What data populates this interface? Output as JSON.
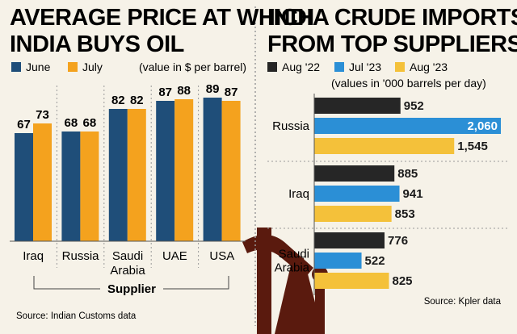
{
  "colors": {
    "june": "#1f4e79",
    "july": "#f4a21e",
    "aug22": "#262626",
    "jul23": "#2b8fd6",
    "aug23": "#f4c13a",
    "background": "#f6f2e8",
    "panel_rule": "#9a9a9a"
  },
  "chart_data": [
    {
      "type": "bar",
      "title": "AVERAGE PRICE AT WHICH INDIA BUYS OIL",
      "title_lines": [
        "AVERAGE PRICE AT WHICH",
        "INDIA BUYS OIL"
      ],
      "note": "(value in $ per barrel)",
      "xlabel": "Supplier",
      "categories": [
        "Iraq",
        "Russia",
        "Saudi Arabia",
        "UAE",
        "USA"
      ],
      "category_lines": [
        [
          "Iraq"
        ],
        [
          "Russia"
        ],
        [
          "Saudi",
          "Arabia"
        ],
        [
          "UAE"
        ],
        [
          "USA"
        ]
      ],
      "series": [
        {
          "name": "June",
          "values": [
            67,
            68,
            82,
            87,
            89
          ]
        },
        {
          "name": "July",
          "values": [
            73,
            68,
            82,
            88,
            87
          ]
        }
      ],
      "ylim": [
        0,
        89
      ],
      "grid": false,
      "legend_position": "top",
      "source": "Source: Indian Customs data"
    },
    {
      "type": "bar",
      "orientation": "horizontal",
      "title": "INDIA CRUDE IMPORTS FROM TOP SUPPLIERS",
      "title_lines": [
        "INDIA CRUDE IMPORTS",
        "FROM TOP SUPPLIERS"
      ],
      "note": "(values in '000 barrels per day)",
      "categories": [
        "Russia",
        "Iraq",
        "Saudi Arabia"
      ],
      "category_lines": [
        [
          "Russia"
        ],
        [
          "Iraq"
        ],
        [
          "Saudi",
          "Arabia"
        ]
      ],
      "series": [
        {
          "name": "Aug '22",
          "values": [
            952,
            885,
            776
          ]
        },
        {
          "name": "Jul '23",
          "values": [
            2060,
            941,
            522
          ]
        },
        {
          "name": "Aug '23",
          "values": [
            1545,
            853,
            825
          ]
        }
      ],
      "value_labels": [
        [
          "952",
          "2,060",
          "1,545"
        ],
        [
          "885",
          "941",
          "853"
        ],
        [
          "776",
          "522",
          "825"
        ]
      ],
      "xlim": [
        0,
        2060
      ],
      "grid": false,
      "legend_position": "top",
      "source": "Source: Kpler data"
    }
  ]
}
